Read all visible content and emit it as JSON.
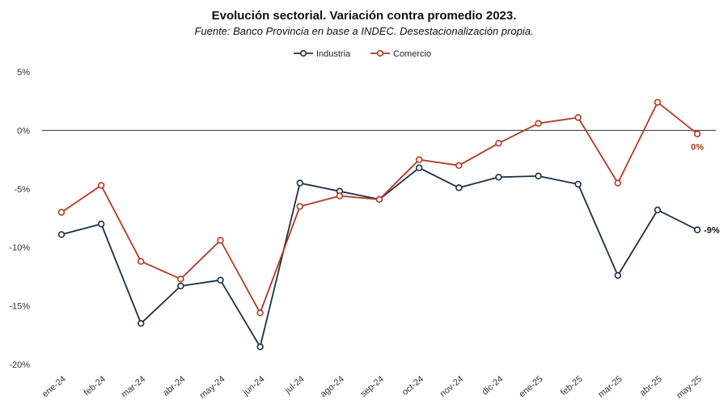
{
  "chart_data": {
    "type": "line",
    "title": "Evolución sectorial. Variación contra promedio 2023.",
    "subtitle": "Fuente: Banco Provincia en base a INDEC. Desestacionalización propia.",
    "categories": [
      "ene-24",
      "feb-24",
      "mar-24",
      "abr-24",
      "may-24",
      "jun-24",
      "jul-24",
      "ago-24",
      "sep-24",
      "oct-24",
      "nov-24",
      "dic-24",
      "ene-25",
      "feb-25",
      "mar-25",
      "abr-25",
      "may-25"
    ],
    "series": [
      {
        "name": "Industria",
        "color": "#1b2f45",
        "values": [
          -8.9,
          -8.0,
          -16.5,
          -13.3,
          -12.8,
          -18.5,
          -4.5,
          -5.2,
          -5.9,
          -3.2,
          -4.9,
          -4.0,
          -3.9,
          -4.6,
          -12.4,
          -6.8,
          -8.5
        ],
        "end_label": "-9%"
      },
      {
        "name": "Comercio",
        "color": "#b03a22",
        "values": [
          -7.0,
          -4.7,
          -11.2,
          -12.7,
          -9.4,
          -15.6,
          -6.5,
          -5.6,
          -5.9,
          -2.5,
          -3.0,
          -1.1,
          0.6,
          1.1,
          -4.5,
          2.4,
          -0.3
        ],
        "end_label": "0%"
      }
    ],
    "ylim": [
      -20,
      5
    ],
    "yticks": [
      5,
      0,
      -5,
      -10,
      -15,
      -20
    ],
    "ytick_labels": [
      "5%",
      "0%",
      "-5%",
      "-10%",
      "-15%",
      "-20%"
    ],
    "xlabel": "",
    "ylabel": "",
    "legend_position": "top-center",
    "grid": false,
    "zero_line": true
  }
}
